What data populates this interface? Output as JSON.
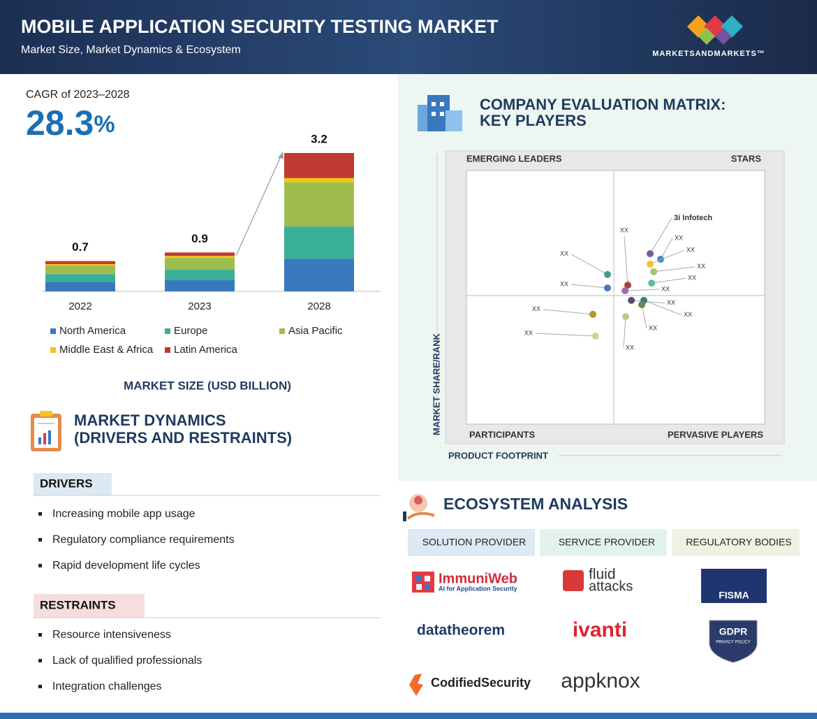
{
  "header": {
    "title": "MOBILE APPLICATION SECURITY TESTING MARKET",
    "subtitle": "Market Size, Market Dynamics & Ecosystem",
    "brand": "MARKETSANDMARKETS™"
  },
  "cagr": {
    "label": "CAGR of 2023–2028",
    "value": "28.3",
    "unit": "%"
  },
  "chart_data": [
    {
      "type": "bar",
      "stacked": true,
      "x_label": "MARKET SIZE (USD BILLION)",
      "categories": [
        "2022",
        "2023",
        "2028"
      ],
      "totals": [
        0.7,
        0.9,
        3.2
      ],
      "ylim": [
        0,
        3.5
      ],
      "series": [
        {
          "name": "North America",
          "color": "#3a78bd",
          "values": [
            0.21,
            0.26,
            0.75
          ]
        },
        {
          "name": "Europe",
          "color": "#3aaf98",
          "values": [
            0.19,
            0.24,
            0.75
          ]
        },
        {
          "name": "Asia Pacific",
          "color": "#9fbd4f",
          "values": [
            0.2,
            0.28,
            1.02
          ]
        },
        {
          "name": "Middle East & Africa",
          "color": "#f5c518",
          "values": [
            0.03,
            0.04,
            0.1
          ]
        },
        {
          "name": "Latin America",
          "color": "#bf3a30",
          "values": [
            0.07,
            0.08,
            0.58
          ]
        }
      ]
    },
    {
      "type": "scatter",
      "title_lines": [
        "COMPANY EVALUATION MATRIX:",
        "KEY PLAYERS"
      ],
      "x_label": "PRODUCT FOOTPRINT",
      "y_label": "MARKET SHARE/RANK",
      "quadrants": [
        "EMERGING LEADERS",
        "STARS",
        "PARTICIPANTS",
        "PERVASIVE PLAYERS"
      ],
      "xlim": [
        0,
        100
      ],
      "ylim": [
        0,
        100
      ],
      "labels": [
        "3i Infotech",
        "XX",
        "XX",
        "XX",
        "XX",
        "XX",
        "XX",
        "XX",
        "XX",
        "XX",
        "XX",
        "XX",
        "XX",
        "XX",
        "XX"
      ],
      "x": [
        61.6,
        65.1,
        61.6,
        62.8,
        62.1,
        54.1,
        53.2,
        47.3,
        47.3,
        55.3,
        59.5,
        58.8,
        53.4,
        42.4,
        43.3
      ],
      "y": [
        67.2,
        65.0,
        63.1,
        60.1,
        55.6,
        54.8,
        52.6,
        59.0,
        53.7,
        48.8,
        48.8,
        47.1,
        42.4,
        43.3,
        34.7
      ],
      "colors": [
        "#7a5a9c",
        "#4a8bc4",
        "#f2c12e",
        "#a8c66c",
        "#5fb8a0",
        "#a8433a",
        "#9a6fb5",
        "#4a9a88",
        "#4a7ab8",
        "#5a4a6e",
        "#3d7a6e",
        "#6a8a5a",
        "#b8cc88",
        "#b8922e",
        "#c8d89c"
      ]
    }
  ],
  "dynamics": {
    "title_lines": [
      "MARKET DYNAMICS",
      "(DRIVERS AND RESTRAINTS)"
    ],
    "drivers": {
      "heading": "DRIVERS",
      "items": [
        "Increasing mobile app usage",
        "Regulatory compliance requirements",
        "Rapid development life cycles"
      ]
    },
    "restraints": {
      "heading": "RESTRAINTS",
      "items": [
        "Resource intensiveness",
        "Lack of qualified professionals",
        "Integration challenges"
      ]
    }
  },
  "ecosystem": {
    "title": "ECOSYSTEM ANALYSIS",
    "columns": [
      {
        "header": "SOLUTION PROVIDER",
        "companies": [
          {
            "name": "ImmuniWeb",
            "tagline": "AI for Application Security"
          },
          {
            "name": "datatheorem"
          },
          {
            "name": "CodifiedSecurity"
          }
        ]
      },
      {
        "header": "SERVICE PROVIDER",
        "companies": [
          {
            "lines": [
              "fluid",
              "attacks"
            ]
          },
          {
            "name": "ivanti"
          },
          {
            "name": "appknox"
          }
        ]
      },
      {
        "header": "REGULATORY BODIES",
        "companies": [
          {
            "name": "FISMA"
          },
          {
            "name": "GDPR",
            "tagline": "PRIVACY POLICY"
          }
        ]
      }
    ]
  }
}
